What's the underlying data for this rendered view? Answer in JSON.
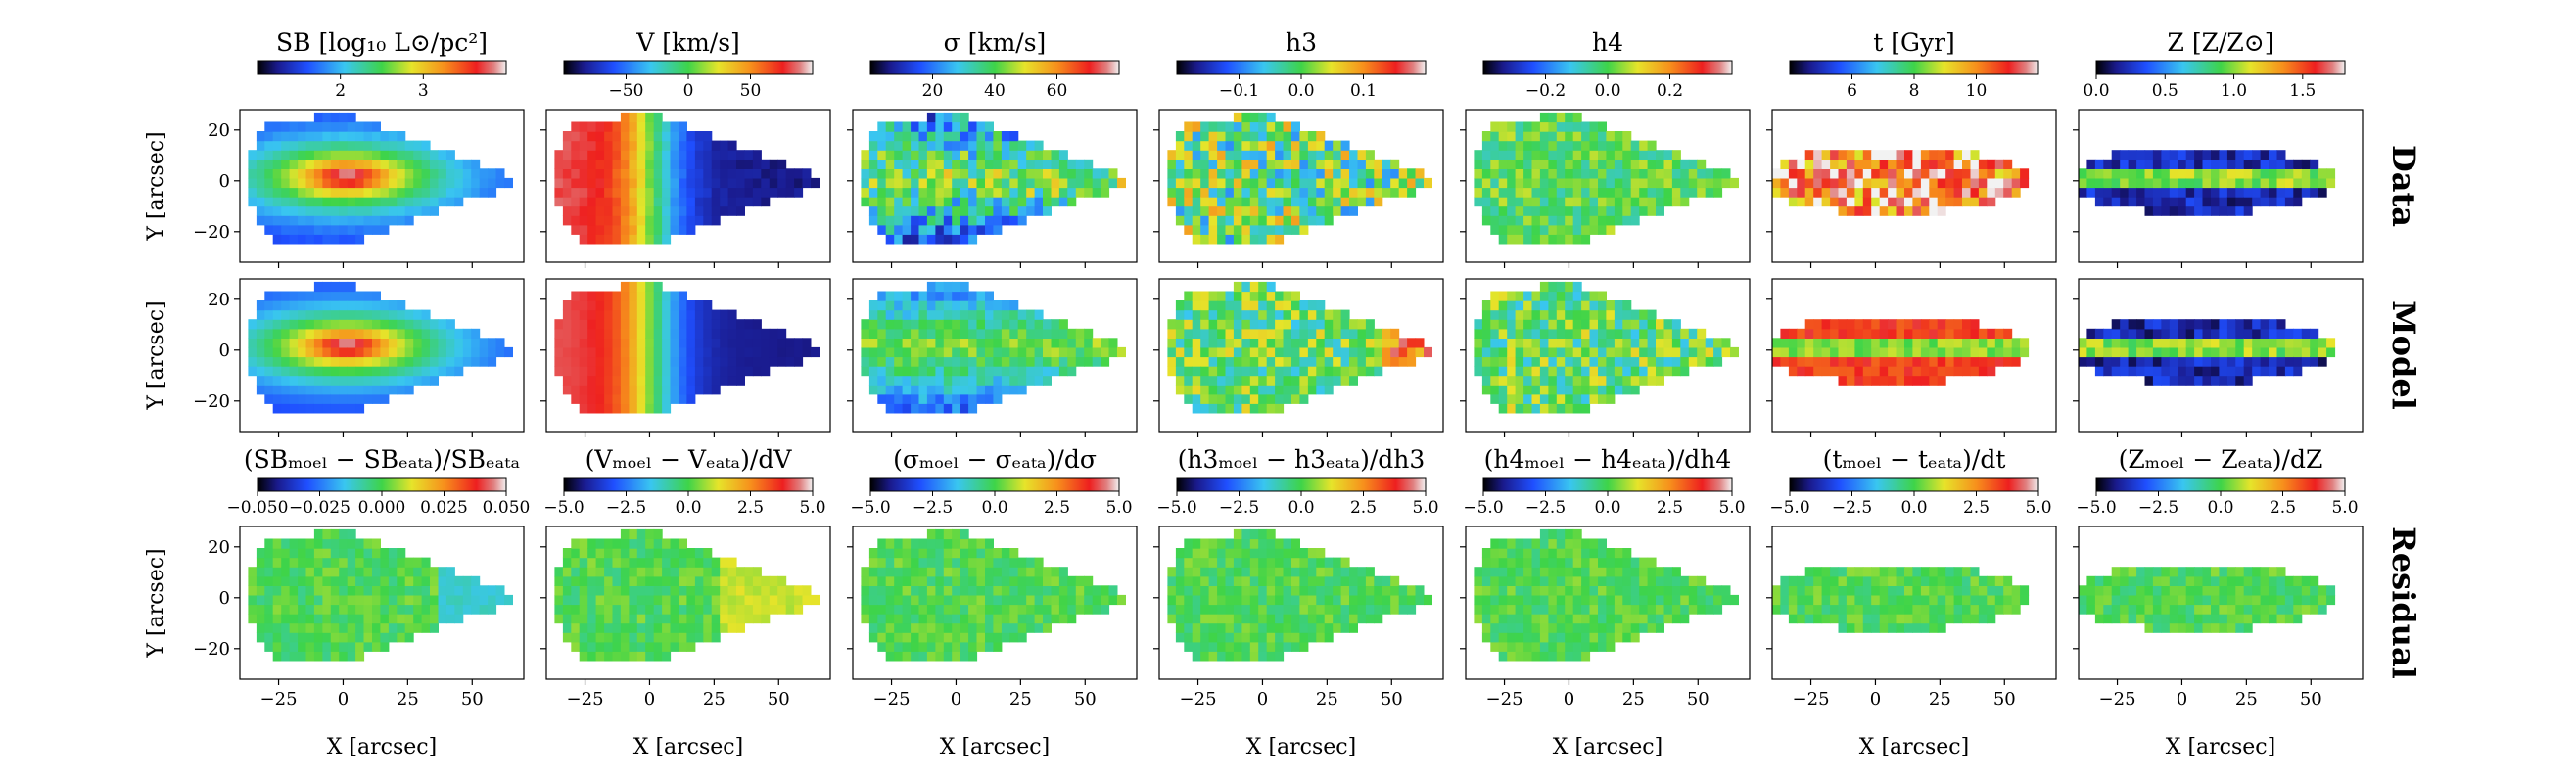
{
  "chart_data": {
    "type": "heatmap",
    "description_rows": [
      "Data",
      "Model",
      "Residual"
    ],
    "row_labels": [
      "Data",
      "Model",
      "Residual"
    ],
    "xlabel": "X [arcsec]",
    "ylabel": "Y [arcsec]",
    "xlim": [
      -40,
      70
    ],
    "ylim": [
      -32,
      28
    ],
    "xticks": [
      "−25",
      "0",
      "25",
      "50"
    ],
    "yticks": [
      "20",
      "0",
      "−20"
    ],
    "columns": [
      {
        "key": "SB",
        "title": "SB [log₁₀ L⊙/pc²]",
        "colorbar_ticks": [
          "2",
          "3"
        ],
        "residual_title": "(SBₘₒₑₗ − SBₑₐₜₐ)/SBₑₐₜₐ",
        "residual_ticks": [
          "−0.050",
          "−0.025",
          "0.000",
          "0.025",
          "0.050"
        ],
        "map": "surface-brightness",
        "range": [
          1.3,
          3.8
        ]
      },
      {
        "key": "V",
        "title": "V [km/s]",
        "colorbar_ticks": [
          "−50",
          "0",
          "50"
        ],
        "residual_title": "(Vₘₒₑₗ − Vₑₐₜₐ)/dV",
        "residual_ticks": [
          "−5.0",
          "−2.5",
          "0.0",
          "2.5",
          "5.0"
        ],
        "map": "velocity",
        "range": [
          -90,
          90
        ]
      },
      {
        "key": "sigma",
        "title": "σ [km/s]",
        "colorbar_ticks": [
          "20",
          "40",
          "60"
        ],
        "residual_title": "(σₘₒₑₗ − σₑₐₜₐ)/dσ",
        "residual_ticks": [
          "−5.0",
          "−2.5",
          "0.0",
          "2.5",
          "5.0"
        ],
        "map": "dispersion",
        "range": [
          5,
          75
        ]
      },
      {
        "key": "h3",
        "title": "h3",
        "colorbar_ticks": [
          "−0.1",
          "0.0",
          "0.1"
        ],
        "residual_title": "(h3ₘₒₑₗ − h3ₑₐₜₐ)/dh3",
        "residual_ticks": [
          "−5.0",
          "−2.5",
          "0.0",
          "2.5",
          "5.0"
        ],
        "map": "h3",
        "range": [
          -0.12,
          0.12
        ]
      },
      {
        "key": "h4",
        "title": "h4",
        "colorbar_ticks": [
          "−0.2",
          "0.0",
          "0.2"
        ],
        "residual_title": "(h4ₘₒₑₗ − h4ₑₐₜₐ)/dh4",
        "residual_ticks": [
          "−5.0",
          "−2.5",
          "0.0",
          "2.5",
          "5.0"
        ],
        "map": "h4",
        "range": [
          -0.25,
          0.25
        ]
      },
      {
        "key": "t",
        "title": "t [Gyr]",
        "colorbar_ticks": [
          "6",
          "8",
          "10"
        ],
        "residual_title": "(tₘₒₑₗ − tₑₐₜₐ)/dt",
        "residual_ticks": [
          "−5.0",
          "−2.5",
          "0.0",
          "2.5",
          "5.0"
        ],
        "map": "age",
        "range": [
          4,
          12
        ]
      },
      {
        "key": "Z",
        "title": "Z [Z/Z⊙]",
        "colorbar_ticks": [
          "0.0",
          "0.5",
          "1.0",
          "1.5"
        ],
        "residual_title": "(Zₘₒₑₗ − Zₑₐₜₐ)/dZ",
        "residual_ticks": [
          "−5.0",
          "−2.5",
          "0.0",
          "2.5",
          "5.0"
        ],
        "map": "metallicity",
        "range": [
          0,
          1.8
        ]
      }
    ]
  }
}
